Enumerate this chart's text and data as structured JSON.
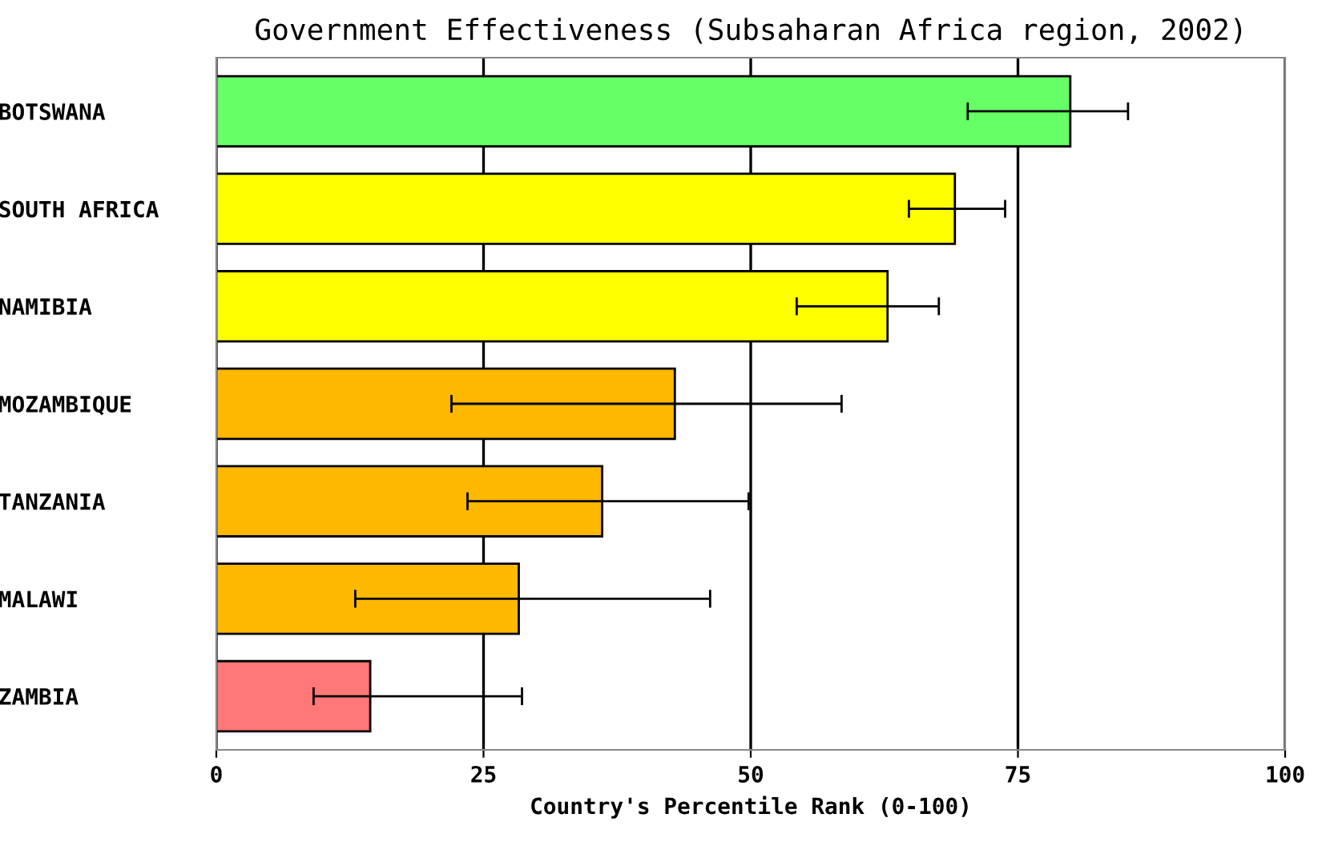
{
  "chart_data": {
    "type": "bar",
    "orientation": "horizontal",
    "title": "Government Effectiveness (Subsaharan Africa region, 2002)",
    "xlabel": "Country's Percentile Rank (0-100)",
    "categories": [
      "BOTSWANA",
      "SOUTH AFRICA",
      "NAMIBIA",
      "MOZAMBIQUE",
      "TANZANIA",
      "MALAWI",
      "ZAMBIA"
    ],
    "values": [
      79.9,
      69.1,
      62.8,
      42.9,
      36.1,
      28.3,
      14.4
    ],
    "colors": [
      "#66ff66",
      "#ffff00",
      "#ffff00",
      "#ffb800",
      "#ffb800",
      "#ffb800",
      "#ff7777"
    ],
    "errors": [
      [
        70.3,
        85.3
      ],
      [
        64.8,
        73.8
      ],
      [
        54.3,
        67.6
      ],
      [
        22.0,
        58.5
      ],
      [
        23.5,
        49.8
      ],
      [
        13.0,
        46.2
      ],
      [
        9.1,
        28.6
      ]
    ],
    "xlim": [
      0,
      100
    ],
    "xticks": [
      0,
      25,
      50,
      75,
      100
    ],
    "grid": "x"
  }
}
